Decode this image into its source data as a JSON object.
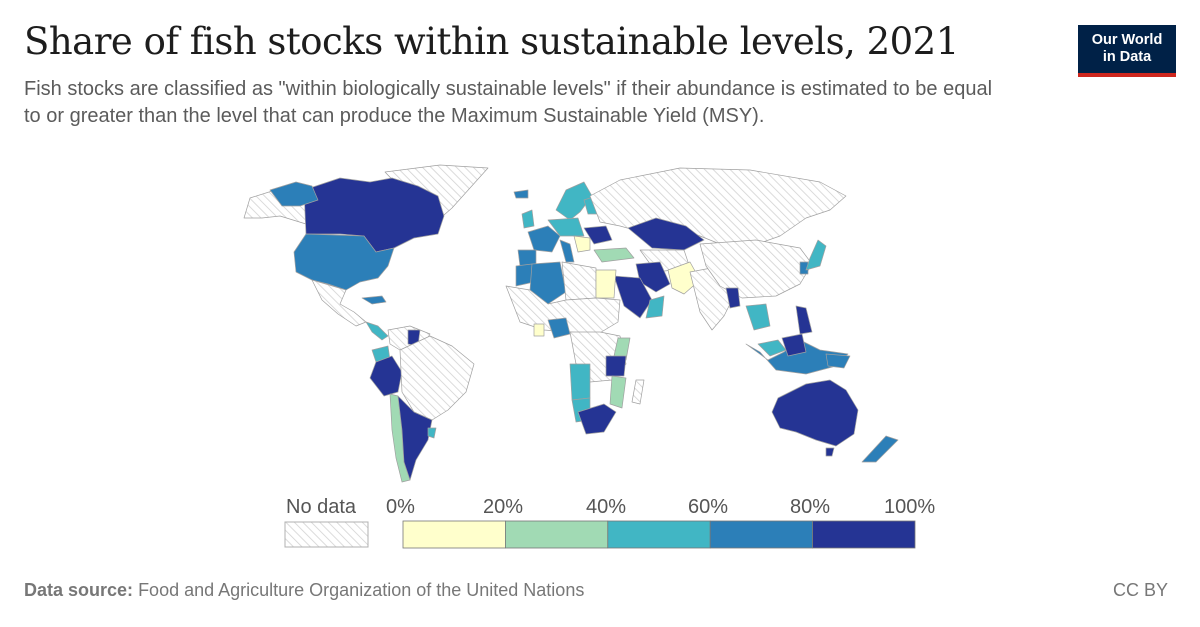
{
  "title": "Share of fish stocks within sustainable levels, 2021",
  "subtitle": "Fish stocks are classified as \"within biologically sustainable levels\" if their abundance is estimated to be equal to or greater than the level that can produce the Maximum Sustainable Yield (MSY).",
  "logo": {
    "line1": "Our World",
    "line2": "in Data"
  },
  "legend": {
    "no_data_label": "No data",
    "ticks": [
      "0%",
      "20%",
      "40%",
      "60%",
      "80%",
      "100%"
    ],
    "bins": [
      {
        "range": "0-20%",
        "color": "#ffffcc"
      },
      {
        "range": "20-40%",
        "color": "#a1dab4"
      },
      {
        "range": "40-60%",
        "color": "#41b6c4"
      },
      {
        "range": "60-80%",
        "color": "#2c7fb8"
      },
      {
        "range": "80-100%",
        "color": "#253494"
      }
    ]
  },
  "colors": {
    "no_data_hatch": "#cccccc",
    "border": "#999999"
  },
  "footer": {
    "source_label": "Data source:",
    "source_text": "Food and Agriculture Organization of the United Nations",
    "license": "CC BY"
  }
}
